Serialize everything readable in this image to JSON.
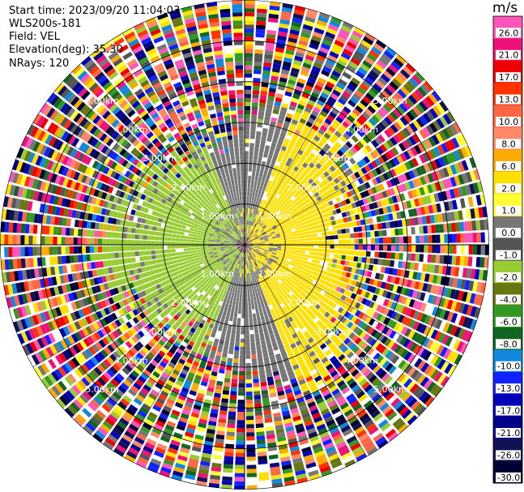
{
  "info": {
    "start_time": "Start time: 2023/09/20 11:04:03",
    "instrument": "WLS200s-181",
    "field": "Field: VEL",
    "elevation": "Elevation(deg): 35.30",
    "nrays": "NRays: 120"
  },
  "colorbar": {
    "unit": "m/s",
    "ticks": [
      "26.0",
      "21.0",
      "17.0",
      "13.0",
      "10.0",
      "8.0",
      "6.0",
      "2.0",
      "1.0",
      "0.0",
      "-1.0",
      "-2.0",
      "-4.0",
      "-6.0",
      "-8.0",
      "-10.0",
      "-13.0",
      "-17.0",
      "-21.0",
      "-26.0",
      "-30.0"
    ],
    "colors": [
      "#ff55bb",
      "#ee1177",
      "#ee0000",
      "#ff3300",
      "#ff6644",
      "#ff8866",
      "#ffaa00",
      "#ffe000",
      "#ffff33",
      "#777777",
      "#555555",
      "#99cc33",
      "#667711",
      "#339922",
      "#116622",
      "#1188dd",
      "#1122ff",
      "#0000bb",
      "#000088",
      "#111155",
      "#000033"
    ]
  },
  "range_labels": [
    "1.00km",
    "2.00km",
    "3.00km",
    "4.00km",
    "5.00km"
  ],
  "chart_data": {
    "type": "heatmap",
    "title": "",
    "field": "VEL",
    "unit": "m/s",
    "projection": "polar (PPI)",
    "n_rays": 120,
    "elevation_deg": 35.3,
    "range_rings_km": [
      1.0,
      2.0,
      3.0,
      4.0,
      5.0
    ],
    "max_range_km": 6.0,
    "near_field_pattern": {
      "description": "dipole velocity pattern within ~3 km",
      "positive_sector_azimuth_deg": [
        20,
        160
      ],
      "positive_value_ms": 2.0,
      "negative_sector_azimuth_deg": [
        200,
        340
      ],
      "negative_value_ms": -2.0,
      "transition_value_ms": 0.0
    },
    "far_field": "noisy, values span -30.0 to 26.0 m/s"
  }
}
